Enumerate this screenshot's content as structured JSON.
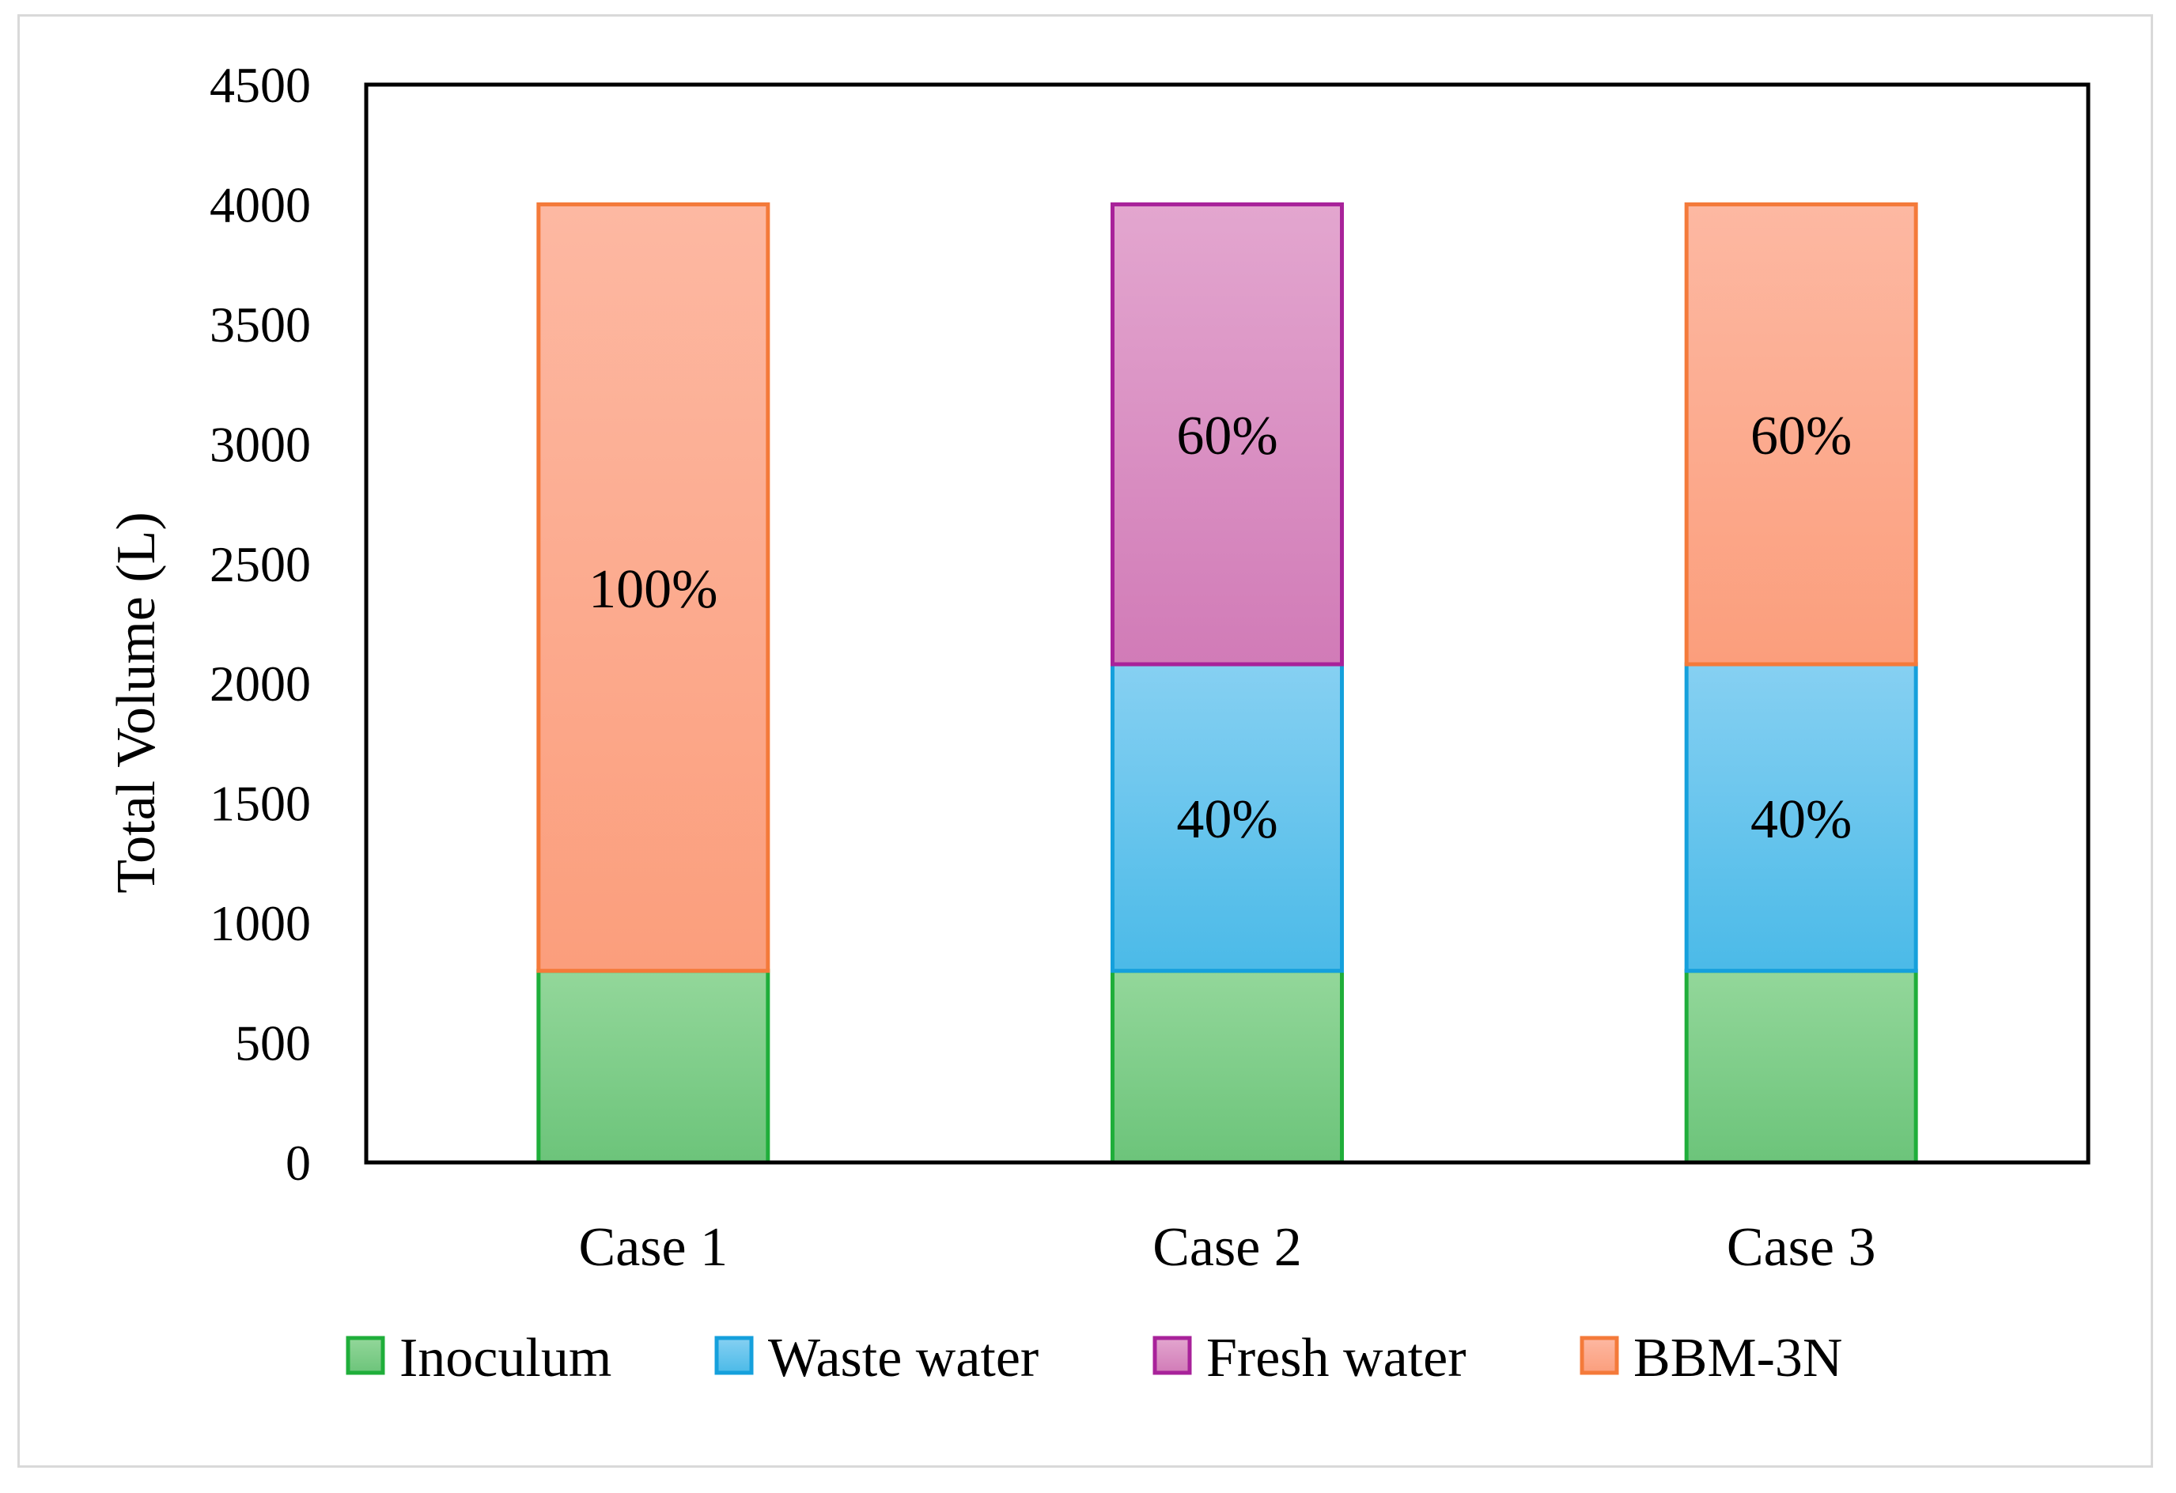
{
  "chart_data": {
    "type": "bar",
    "stacked": true,
    "categories": [
      "Case 1",
      "Case 2",
      "Case 3"
    ],
    "ylabel": "Total Volume  (L)",
    "xlabel": "",
    "ylim": [
      0,
      4500
    ],
    "yticks": [
      0,
      500,
      1000,
      1500,
      2000,
      2500,
      3000,
      3500,
      4000,
      4500
    ],
    "legend_position": "bottom",
    "series": [
      {
        "name": "Inoculum",
        "values": [
          800,
          800,
          800
        ],
        "labels": [
          "",
          "",
          ""
        ],
        "fill_top": "#93d79a",
        "fill_bottom": "#6cc47a",
        "stroke": "#1fae3a"
      },
      {
        "name": "Waste water",
        "values": [
          0,
          1280,
          1280
        ],
        "labels": [
          "",
          "40%",
          "40%"
        ],
        "fill_top": "#86d0f2",
        "fill_bottom": "#4bbae8",
        "stroke": "#15a0dc"
      },
      {
        "name": "Fresh water",
        "values": [
          0,
          1920,
          0
        ],
        "labels": [
          "",
          "60%",
          ""
        ],
        "fill_top": "#e3a6cf",
        "fill_bottom": "#d17bb7",
        "stroke": "#a8229a"
      },
      {
        "name": "BBM-3N",
        "values": [
          3200,
          0,
          1920
        ],
        "labels": [
          "100%",
          "",
          "60%"
        ],
        "fill_top": "#fdb8a2",
        "fill_bottom": "#fb9e7c",
        "stroke": "#f47a3a"
      }
    ]
  }
}
